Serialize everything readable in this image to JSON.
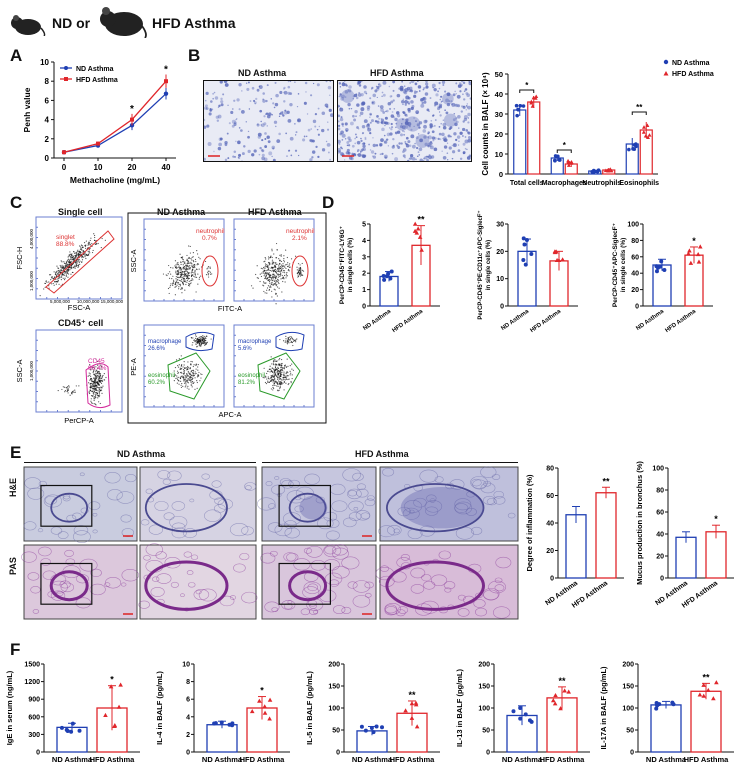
{
  "header": {
    "text_nd": "ND or",
    "text_hfd": "HFD Asthma"
  },
  "panels": {
    "A": "A",
    "B": "B",
    "C": "C",
    "D": "D",
    "E": "E",
    "F": "F"
  },
  "colors": {
    "nd": "#1f3fb3",
    "hfd": "#e0262b",
    "black": "#111111",
    "stain": "#5565b8"
  },
  "panelA": {
    "ylabel": "Penh value",
    "xlabel": "Methacholine (mg/mL)",
    "legend": [
      "ND Asthma",
      "HFD Asthma"
    ],
    "sig": [
      "*",
      "*"
    ]
  },
  "panelB": {
    "micro_titles": [
      "ND Asthma",
      "HFD Asthma"
    ],
    "ylabel": "Cell counts in BALF (× 10⁴)",
    "legend": [
      "ND Asthma",
      "HFD Asthma"
    ],
    "sig": [
      "*",
      "*",
      "**"
    ]
  },
  "panelC": {
    "single_cell": "Single cell",
    "cd45_cell": "CD45⁺ cell",
    "nd": "ND Asthma",
    "hfd": "HFD Asthma",
    "fsc_h": "FSC-H",
    "fsc_a": "FSC-A",
    "ssc_a": "SSC-A",
    "fitc_a": "FITC-A",
    "pe_a": "PE-A",
    "apc_a": "APC-A",
    "percp_a": "PerCP-A",
    "singlet": "singlet",
    "singlet_pct": "88.8%",
    "cd45": "CD45",
    "cd45_pct": "96.4%",
    "neutrophil": "neutrophil",
    "nd_neut_pct": "0.7%",
    "hfd_neut_pct": "2.1%",
    "macrophage": "macrophage",
    "eosinophil": "eosinophil",
    "nd_mac_pct": "26.6%",
    "nd_eos_pct": "60.2%",
    "hfd_mac_pct": "5.6%",
    "hfd_eos_pct": "81.2%",
    "fsc_ticks": [
      "5,000,000",
      "10,000,000 15,000,000"
    ],
    "fsch_ticks": [
      "1,000,000",
      "4,000,000"
    ],
    "ssc_tick": "1,000,000"
  },
  "panelD": {
    "ylabels": [
      "PerCP-CD45⁺FITC-LY6G⁺ in single cells (%)",
      "PerCP-CD45⁺PE-CD11c⁺APC-SiglecF⁺ in single cells (%)",
      "PerCP-CD45⁺APC-SiglecF⁺ in single cells (%)"
    ],
    "xcats": [
      "ND Asthma",
      "HFD Asthma"
    ],
    "sig": [
      "**",
      "",
      "*"
    ]
  },
  "panelE": {
    "titles": [
      "ND Asthma",
      "HFD Asthma"
    ],
    "rows": [
      "H&E",
      "PAS"
    ],
    "ylabels": [
      "Degree of inflammation (%)",
      "Mucus production in bronchus (%)"
    ],
    "xcats": [
      "ND Asthma",
      "HFD Asthma"
    ],
    "sig": [
      "**",
      "*"
    ]
  },
  "panelF": {
    "ylabels": [
      "IgE in serum (ng/mL)",
      "IL-4 in BALF (pg/mL)",
      "IL-5 in BALF (pg/mL)",
      "IL-13 in BALF (pg/mL)",
      "IL-17A in BALF (pg/mL)"
    ],
    "xcats": [
      "ND Asthma",
      "HFD Asthma"
    ],
    "sig": [
      "*",
      "*",
      "**",
      "**",
      "**"
    ]
  },
  "chart_data": [
    {
      "type": "line",
      "title": "A",
      "xlabel": "Methacholine (mg/mL)",
      "ylabel": "Penh value",
      "x": [
        0,
        10,
        20,
        40
      ],
      "xlim": [
        0,
        40
      ],
      "ylim": [
        0,
        10
      ],
      "yticks": [
        0,
        2,
        4,
        6,
        8,
        10
      ],
      "series": [
        {
          "name": "ND Asthma",
          "values": [
            0.6,
            1.3,
            3.4,
            6.7
          ],
          "err": [
            0.1,
            0.2,
            0.5,
            0.6
          ]
        },
        {
          "name": "HFD Asthma",
          "values": [
            0.6,
            1.5,
            4.0,
            8.0
          ],
          "err": [
            0.1,
            0.2,
            0.6,
            0.7
          ]
        }
      ]
    },
    {
      "type": "bar",
      "title": "B",
      "ylabel": "Cell counts in BALF (× 10⁴)",
      "categories": [
        "Total cells",
        "Macrophages",
        "Neutrophils",
        "Eosinophils"
      ],
      "ylim": [
        0,
        50
      ],
      "yticks": [
        0,
        10,
        20,
        30,
        40,
        50
      ],
      "series": [
        {
          "name": "ND Asthma",
          "values": [
            32,
            8,
            1.5,
            15
          ],
          "err": [
            3,
            1.5,
            0.5,
            3
          ]
        },
        {
          "name": "HFD Asthma",
          "values": [
            36,
            5,
            2,
            22
          ],
          "err": [
            3,
            1.5,
            1,
            4
          ]
        }
      ]
    },
    {
      "type": "bar",
      "title": "D1",
      "ylabel": "PerCP-CD45⁺FITC-LY6G⁺ in single cells (%)",
      "categories": [
        "ND Asthma",
        "HFD Asthma"
      ],
      "ylim": [
        0,
        5
      ],
      "yticks": [
        0,
        1,
        2,
        3,
        4,
        5
      ],
      "values": [
        1.8,
        3.7
      ],
      "err": [
        0.3,
        1.2
      ]
    },
    {
      "type": "bar",
      "title": "D2",
      "ylabel": "PerCP-CD45⁺PE-CD11c⁺APC-SiglecF⁺ in single cells (%)",
      "categories": [
        "ND Asthma",
        "HFD Asthma"
      ],
      "ylim": [
        0,
        30
      ],
      "yticks": [
        0,
        10,
        20,
        30
      ],
      "values": [
        20,
        16.5
      ],
      "err": [
        4.5,
        3.5
      ]
    },
    {
      "type": "bar",
      "title": "D3",
      "ylabel": "PerCP-CD45⁺APC-SiglecF⁺ in single cells (%)",
      "categories": [
        "ND Asthma",
        "HFD Asthma"
      ],
      "ylim": [
        0,
        100
      ],
      "yticks": [
        0,
        20,
        40,
        60,
        80,
        100
      ],
      "values": [
        50,
        62
      ],
      "err": [
        7,
        10
      ]
    },
    {
      "type": "bar",
      "title": "E1",
      "ylabel": "Degree of inflammation (%)",
      "categories": [
        "ND Asthma",
        "HFD Asthma"
      ],
      "ylim": [
        0,
        80
      ],
      "yticks": [
        0,
        20,
        40,
        60,
        80
      ],
      "values": [
        46,
        62
      ],
      "err": [
        6,
        4
      ]
    },
    {
      "type": "bar",
      "title": "E2",
      "ylabel": "Mucus production in bronchus (%)",
      "categories": [
        "ND Asthma",
        "HFD Asthma"
      ],
      "ylim": [
        0,
        100
      ],
      "yticks": [
        0,
        20,
        40,
        60,
        80,
        100
      ],
      "values": [
        37,
        42
      ],
      "err": [
        5,
        6
      ]
    },
    {
      "type": "bar",
      "title": "F1",
      "ylabel": "IgE in serum (ng/mL)",
      "categories": [
        "ND Asthma",
        "HFD Asthma"
      ],
      "ylim": [
        0,
        1500
      ],
      "yticks": [
        0,
        300,
        600,
        900,
        1200,
        1500
      ],
      "values": [
        420,
        750
      ],
      "err": [
        70,
        380
      ]
    },
    {
      "type": "bar",
      "title": "F2",
      "ylabel": "IL-4 in BALF (pg/mL)",
      "categories": [
        "ND Asthma",
        "HFD Asthma"
      ],
      "ylim": [
        0,
        10
      ],
      "yticks": [
        0,
        2,
        4,
        6,
        8,
        10
      ],
      "values": [
        3.1,
        5.0
      ],
      "err": [
        0.4,
        1.3
      ]
    },
    {
      "type": "bar",
      "title": "F3",
      "ylabel": "IL-5 in BALF (pg/mL)",
      "categories": [
        "ND Asthma",
        "HFD Asthma"
      ],
      "ylim": [
        0,
        200
      ],
      "yticks": [
        0,
        50,
        100,
        150,
        200
      ],
      "values": [
        48,
        88
      ],
      "err": [
        10,
        28
      ]
    },
    {
      "type": "bar",
      "title": "F4",
      "ylabel": "IL-13 in BALF (pg/mL)",
      "categories": [
        "ND Asthma",
        "HFD Asthma"
      ],
      "ylim": [
        0,
        200
      ],
      "yticks": [
        0,
        50,
        100,
        150,
        200
      ],
      "values": [
        83,
        123
      ],
      "err": [
        22,
        25
      ]
    },
    {
      "type": "bar",
      "title": "F5",
      "ylabel": "IL-17A in BALF (pg/mL)",
      "categories": [
        "ND Asthma",
        "HFD Asthma"
      ],
      "ylim": [
        0,
        200
      ],
      "yticks": [
        0,
        50,
        100,
        150,
        200
      ],
      "values": [
        107,
        138
      ],
      "err": [
        8,
        18
      ]
    }
  ]
}
